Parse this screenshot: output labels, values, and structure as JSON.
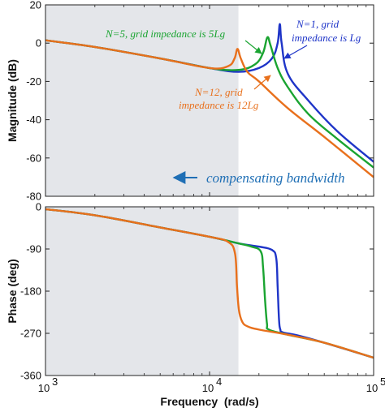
{
  "chart_data": [
    {
      "type": "line",
      "xscale": "log",
      "xlim": [
        1000,
        100000
      ],
      "ylim": [
        -80,
        20
      ],
      "grid": false,
      "ylabel": "Magnitude (dB)",
      "yticks": [
        "20",
        "0",
        "-20",
        "-40",
        "-60",
        "-80"
      ],
      "shaded_region": {
        "from": 1000,
        "to": 15000,
        "color": "#e4e6ea"
      },
      "series": [
        {
          "name": "N=1, grid impedance is Lg",
          "color": "#1f35c8",
          "x": [
            1000,
            2000,
            5000,
            10000,
            15000,
            20000,
            24000,
            26000,
            26800,
            27500,
            30000,
            40000,
            60000,
            100000
          ],
          "y": [
            1.5,
            -2,
            -8,
            -13,
            -15,
            -13,
            -8,
            0,
            10,
            0,
            -16,
            -30,
            -46,
            -62
          ]
        },
        {
          "name": "N=5, grid impedance is 5Lg",
          "color": "#1aa431",
          "x": [
            1000,
            2000,
            5000,
            10000,
            15000,
            19000,
            21200,
            22500,
            23500,
            26000,
            30000,
            40000,
            60000,
            100000
          ],
          "y": [
            1.5,
            -2,
            -8,
            -13,
            -14,
            -11,
            -5,
            3,
            -1,
            -13,
            -23,
            -37,
            -50,
            -65
          ]
        },
        {
          "name": "N=12, grid impedance is 12Lg",
          "color": "#e8701c",
          "x": [
            1000,
            2000,
            5000,
            10000,
            13000,
            14200,
            14800,
            15500,
            17000,
            20000,
            30000,
            50000,
            100000
          ],
          "y": [
            1.5,
            -2,
            -8,
            -13,
            -12,
            -8,
            -3,
            -8,
            -15,
            -20,
            -34,
            -49,
            -70
          ]
        }
      ],
      "annotations": [
        {
          "text": "N=1, grid",
          "color": "#1f35c8"
        },
        {
          "text": "impedance is Lg",
          "color": "#1f35c8"
        },
        {
          "text": "N=5, grid impedance is 5Lg",
          "color": "#1aa431"
        },
        {
          "text": "N=12, grid",
          "color": "#e8701c"
        },
        {
          "text": "impedance is 12Lg",
          "color": "#e8701c"
        },
        {
          "text": "compensating bandwidth",
          "color": "#1f6fb5"
        }
      ]
    },
    {
      "type": "line",
      "xscale": "log",
      "xlim": [
        1000,
        100000
      ],
      "ylim": [
        -360,
        0
      ],
      "grid": false,
      "ylabel": "Phase (deg)",
      "xlabel": "Frequency  (rad/s)",
      "yticks": [
        "0",
        "-90",
        "-180",
        "-270",
        "-360"
      ],
      "xticks": [
        "10",
        "10",
        "10"
      ],
      "xtick_exponents": [
        "3",
        "4",
        "5"
      ],
      "shaded_region": {
        "from": 1000,
        "to": 15000,
        "color": "#e4e6ea"
      },
      "series": [
        {
          "name": "N=1",
          "color": "#1f35c8",
          "x": [
            1000,
            2000,
            5000,
            10000,
            15000,
            20000,
            24000,
            25500,
            26000,
            26500,
            27000,
            28000,
            35000,
            50000,
            100000
          ],
          "y": [
            -5,
            -18,
            -44,
            -64,
            -78,
            -85,
            -92,
            -110,
            -170,
            -240,
            -262,
            -268,
            -275,
            -290,
            -322
          ]
        },
        {
          "name": "N=5",
          "color": "#1aa431",
          "x": [
            1000,
            2000,
            5000,
            10000,
            15000,
            18000,
            20500,
            21200,
            21800,
            22400,
            23000,
            30000,
            50000,
            100000
          ],
          "y": [
            -5,
            -18,
            -44,
            -64,
            -78,
            -85,
            -95,
            -130,
            -200,
            -250,
            -262,
            -273,
            -290,
            -322
          ]
        },
        {
          "name": "N=12",
          "color": "#e8701c",
          "x": [
            1000,
            2000,
            5000,
            10000,
            13000,
            14300,
            14700,
            15100,
            15800,
            17000,
            20000,
            30000,
            50000,
            100000
          ],
          "y": [
            -5,
            -18,
            -44,
            -64,
            -75,
            -100,
            -170,
            -220,
            -245,
            -255,
            -262,
            -273,
            -290,
            -322
          ]
        }
      ]
    }
  ]
}
